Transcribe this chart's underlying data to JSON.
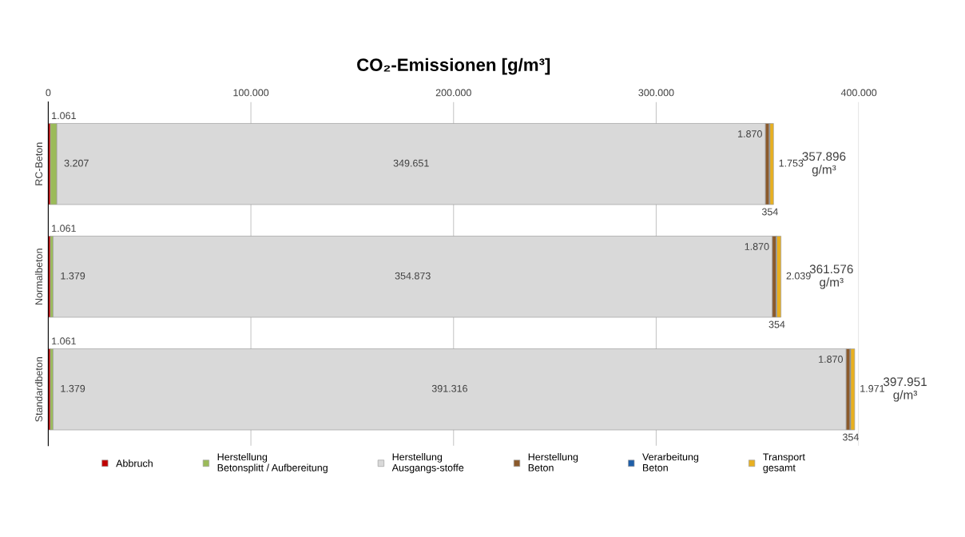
{
  "chart_data": {
    "type": "bar",
    "orientation": "horizontal",
    "stacked": true,
    "title": "CO₂-Emissionen [g/m³]",
    "categories": [
      "RC-Beton",
      "Normalbeton",
      "Standardbeton"
    ],
    "series": [
      {
        "name": "Abbruch",
        "color": "#c00000",
        "values": [
          1061,
          1061,
          1061
        ],
        "value_labels": [
          "1.061",
          "1.061",
          "1.061"
        ]
      },
      {
        "name": "Herstellung Betonsplitt / Aufbereitung",
        "color": "#9bbb59",
        "values": [
          3207,
          1379,
          1379
        ],
        "value_labels": [
          "3.207",
          "1.379",
          "1.379"
        ]
      },
      {
        "name": "Herstellung Ausgangs-stoffe",
        "color": "#d9d9d9",
        "values": [
          349651,
          354873,
          391316
        ],
        "value_labels": [
          "349.651",
          "354.873",
          "391.316"
        ]
      },
      {
        "name": "Herstellung Beton",
        "color": "#8b5a2b",
        "values": [
          1870,
          1870,
          1870
        ],
        "value_labels": [
          "1.870",
          "1.870",
          "1.870"
        ]
      },
      {
        "name": "Verarbeitung Beton",
        "color": "#1f5fa8",
        "values": [
          354,
          354,
          354
        ],
        "value_labels": [
          "354",
          "354",
          "354"
        ]
      },
      {
        "name": "Transport gesamt",
        "color": "#e8b020",
        "values": [
          1753,
          2039,
          1971
        ],
        "value_labels": [
          "1.753",
          "2.039",
          "1.971"
        ]
      }
    ],
    "totals": [
      "357.896\ng/m³",
      "361.576\ng/m³",
      "397.951\ng/m³"
    ],
    "xlim": [
      0,
      400000
    ],
    "xticks": [
      0,
      {
        "value": 100000,
        "label": "100.000"
      },
      {
        "value": 200000,
        "label": "200.000"
      },
      {
        "value": 300000,
        "label": "300.000"
      },
      {
        "value": 400000,
        "label": "400.000"
      }
    ],
    "grid": "x",
    "legend": "bottom"
  }
}
